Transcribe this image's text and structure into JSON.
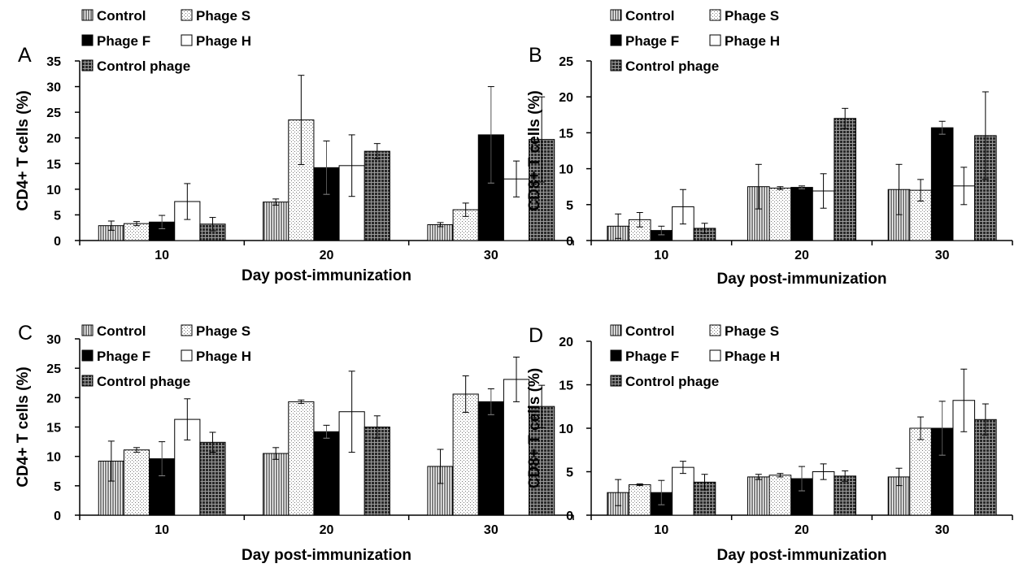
{
  "colors": {
    "ink": "#000000",
    "paper": "#ffffff",
    "dots": "#9a9a9a"
  },
  "chart_data": [
    {
      "panel_label": "A",
      "type": "bar",
      "title": "",
      "xlabel": "Day post-immunization",
      "ylabel": "CD4+ T cells (%)",
      "ylim": [
        0,
        35
      ],
      "yticks": [
        0,
        5,
        10,
        15,
        20,
        25,
        30,
        35
      ],
      "categories": [
        "10",
        "20",
        "30"
      ],
      "grid": false,
      "legend_position": "top-left",
      "series": [
        {
          "name": "Control",
          "pattern": "vlines",
          "values": [
            2.9,
            7.5,
            3.1
          ],
          "errors": [
            0.9,
            0.6,
            0.4
          ]
        },
        {
          "name": "Phage S",
          "pattern": "dots",
          "values": [
            3.3,
            23.5,
            6.0
          ],
          "errors": [
            0.4,
            8.7,
            1.3
          ]
        },
        {
          "name": "Phage F",
          "pattern": "solid",
          "values": [
            3.6,
            14.2,
            20.6
          ],
          "errors": [
            1.3,
            5.2,
            9.4
          ]
        },
        {
          "name": "Phage H",
          "pattern": "white",
          "values": [
            7.6,
            14.6,
            12.0
          ],
          "errors": [
            3.5,
            6.0,
            3.5
          ]
        },
        {
          "name": "Control phage",
          "pattern": "grid",
          "values": [
            3.2,
            17.4,
            19.7
          ],
          "errors": [
            1.3,
            1.5,
            8.3
          ]
        }
      ]
    },
    {
      "panel_label": "B",
      "type": "bar",
      "title": "",
      "xlabel": "Day post-immunization",
      "ylabel": "CD8+ T cells (%)",
      "ylim": [
        0,
        25
      ],
      "yticks": [
        0,
        5,
        10,
        15,
        20,
        25
      ],
      "categories": [
        "10",
        "20",
        "30"
      ],
      "grid": false,
      "legend_position": "top-left",
      "series": [
        {
          "name": "Control",
          "pattern": "vlines",
          "values": [
            2.0,
            7.5,
            7.1
          ],
          "errors": [
            1.7,
            3.1,
            3.5
          ]
        },
        {
          "name": "Phage S",
          "pattern": "dots",
          "values": [
            2.9,
            7.3,
            7.0
          ],
          "errors": [
            1.0,
            0.2,
            1.5
          ]
        },
        {
          "name": "Phage F",
          "pattern": "solid",
          "values": [
            1.4,
            7.4,
            15.7
          ],
          "errors": [
            0.6,
            0.2,
            0.9
          ]
        },
        {
          "name": "Phage H",
          "pattern": "white",
          "values": [
            4.7,
            6.9,
            7.6
          ],
          "errors": [
            2.4,
            2.4,
            2.6
          ]
        },
        {
          "name": "Control phage",
          "pattern": "grid",
          "values": [
            1.7,
            17.0,
            14.6
          ],
          "errors": [
            0.7,
            1.4,
            6.1
          ]
        }
      ]
    },
    {
      "panel_label": "C",
      "type": "bar",
      "title": "",
      "xlabel": "Day post-immunization",
      "ylabel": "CD4+ T cells (%)",
      "ylim": [
        0,
        30
      ],
      "yticks": [
        0,
        5,
        10,
        15,
        20,
        25,
        30
      ],
      "categories": [
        "10",
        "20",
        "30"
      ],
      "grid": false,
      "legend_position": "top-left",
      "series": [
        {
          "name": "Control",
          "pattern": "vlines",
          "values": [
            9.2,
            10.5,
            8.3
          ],
          "errors": [
            3.4,
            1.0,
            2.9
          ]
        },
        {
          "name": "Phage S",
          "pattern": "dots",
          "values": [
            11.1,
            19.3,
            20.6
          ],
          "errors": [
            0.4,
            0.3,
            3.1
          ]
        },
        {
          "name": "Phage F",
          "pattern": "solid",
          "values": [
            9.6,
            14.2,
            19.3
          ],
          "errors": [
            2.9,
            1.1,
            2.2
          ]
        },
        {
          "name": "Phage H",
          "pattern": "white",
          "values": [
            16.3,
            17.6,
            23.1
          ],
          "errors": [
            3.5,
            6.9,
            3.8
          ]
        },
        {
          "name": "Control phage",
          "pattern": "grid",
          "values": [
            12.4,
            15.0,
            18.5
          ],
          "errors": [
            1.7,
            1.9,
            3.6
          ]
        }
      ]
    },
    {
      "panel_label": "D",
      "type": "bar",
      "title": "",
      "xlabel": "Day post-immunization",
      "ylabel": "CD8+ T cells (%)",
      "ylim": [
        0,
        20
      ],
      "yticks": [
        0,
        5,
        10,
        15,
        20
      ],
      "categories": [
        "10",
        "20",
        "30"
      ],
      "grid": false,
      "legend_position": "top-left",
      "series": [
        {
          "name": "Control",
          "pattern": "vlines",
          "values": [
            2.6,
            4.4,
            4.4
          ],
          "errors": [
            1.5,
            0.3,
            1.0
          ]
        },
        {
          "name": "Phage S",
          "pattern": "dots",
          "values": [
            3.5,
            4.6,
            10.0
          ],
          "errors": [
            0.1,
            0.2,
            1.3
          ]
        },
        {
          "name": "Phage F",
          "pattern": "solid",
          "values": [
            2.6,
            4.2,
            10.0
          ],
          "errors": [
            1.4,
            1.4,
            3.1
          ]
        },
        {
          "name": "Phage H",
          "pattern": "white",
          "values": [
            5.5,
            5.0,
            13.2
          ],
          "errors": [
            0.7,
            0.9,
            3.6
          ]
        },
        {
          "name": "Control phage",
          "pattern": "grid",
          "values": [
            3.8,
            4.5,
            11.0
          ],
          "errors": [
            0.9,
            0.6,
            1.8
          ]
        }
      ]
    }
  ]
}
